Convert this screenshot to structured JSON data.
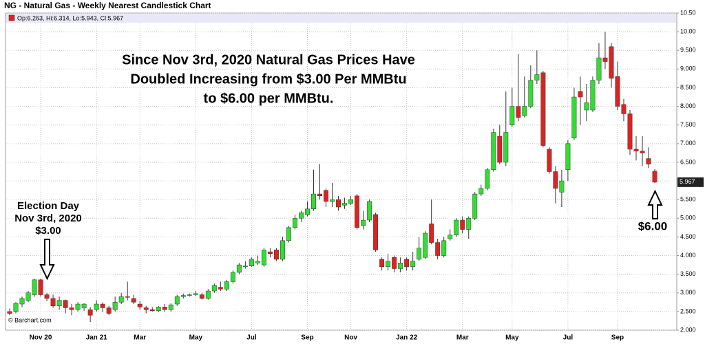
{
  "chart_data": {
    "type": "candlestick",
    "title": "NG - Natural Gas - Weekly Nearest Candlestick Chart",
    "legend_text": "Op:6.263, Hi:6.314, Lo:5.943, Cl:5.967",
    "annotation": [
      "Since Nov 3rd, 2020 Natural Gas Prices Have",
      "Doubled Increasing from $3.00 Per MMBtu",
      "to $6.00 per MMBtu."
    ],
    "election_label": [
      "Election Day",
      "Nov 3rd, 2020",
      "$3.00"
    ],
    "end_label": "$6.00",
    "credit": "© Barchart.com",
    "up_color": "#33dd33",
    "down_color": "#dd2222",
    "grid": true,
    "ylim": [
      2.0,
      10.5
    ],
    "yticks": [
      {
        "value": 2.0,
        "label": "2.000"
      },
      {
        "value": 2.5,
        "label": "2.500"
      },
      {
        "value": 3.0,
        "label": "3.000"
      },
      {
        "value": 3.5,
        "label": "3.500"
      },
      {
        "value": 4.0,
        "label": "4.000"
      },
      {
        "value": 4.5,
        "label": "4.500"
      },
      {
        "value": 5.0,
        "label": "5.000"
      },
      {
        "value": 5.5,
        "label": "5.500"
      },
      {
        "value": 6.0,
        "label": "6.000"
      },
      {
        "value": 6.5,
        "label": "6.500"
      },
      {
        "value": 7.0,
        "label": "7.000"
      },
      {
        "value": 7.5,
        "label": "7.500"
      },
      {
        "value": 8.0,
        "label": "8.000"
      },
      {
        "value": 8.5,
        "label": "8.500"
      },
      {
        "value": 9.0,
        "label": "9.000"
      },
      {
        "value": 9.5,
        "label": "9.500"
      },
      {
        "value": 10.0,
        "label": "10.00"
      },
      {
        "value": 10.5,
        "label": "10.50"
      }
    ],
    "categories": [
      null,
      null,
      null,
      null,
      null,
      "Nov 20",
      null,
      null,
      null,
      null,
      null,
      null,
      null,
      null,
      "Jan 21",
      null,
      null,
      null,
      null,
      null,
      null,
      "Mar",
      null,
      null,
      null,
      null,
      null,
      null,
      null,
      null,
      "May",
      null,
      null,
      null,
      null,
      null,
      null,
      null,
      null,
      "Jul",
      null,
      null,
      null,
      null,
      null,
      null,
      null,
      null,
      "Sep",
      null,
      null,
      null,
      null,
      null,
      null,
      "Nov",
      null,
      null,
      null,
      null,
      null,
      null,
      null,
      null,
      "Jan 22",
      null,
      null,
      null,
      null,
      null,
      null,
      null,
      null,
      "Mar",
      null,
      null,
      null,
      null,
      null,
      null,
      null,
      "May",
      null,
      null,
      null,
      null,
      null,
      null,
      null,
      null,
      "Jul",
      null,
      null,
      null,
      null,
      null,
      null,
      null,
      "Sep",
      null,
      null,
      null,
      null,
      null,
      null
    ],
    "open": [
      2.5,
      2.5,
      2.7,
      2.8,
      2.95,
      3.35,
      2.95,
      2.85,
      2.65,
      2.8,
      2.6,
      2.55,
      2.6,
      2.55,
      2.55,
      2.7,
      2.6,
      2.55,
      2.75,
      2.9,
      2.85,
      2.7,
      2.6,
      2.55,
      2.52,
      2.62,
      2.55,
      2.7,
      2.9,
      2.93,
      2.95,
      2.95,
      2.85,
      3.05,
      3.15,
      3.1,
      3.3,
      3.55,
      3.7,
      3.72,
      3.8,
      3.75,
      4.1,
      4.15,
      3.9,
      4.4,
      4.75,
      5.0,
      5.1,
      5.25,
      5.65,
      5.75,
      5.45,
      5.5,
      5.35,
      5.4,
      5.6,
      4.8,
      4.95,
      5.1,
      3.9,
      3.7,
      3.95,
      3.65,
      3.9,
      3.7,
      3.9,
      3.95,
      4.85,
      4.35,
      4.0,
      4.45,
      4.55,
      4.95,
      4.7,
      5.0,
      5.65,
      5.8,
      6.3,
      7.2,
      6.5,
      7.5,
      8.0,
      7.75,
      8.0,
      8.7,
      8.9,
      6.85,
      6.25,
      5.7,
      6.3,
      7.15,
      8.4,
      7.9,
      7.9,
      8.7,
      9.3,
      9.6,
      8.8,
      8.05,
      7.8,
      6.85,
      6.8,
      6.6,
      6.263
    ],
    "high": [
      2.58,
      2.75,
      2.9,
      3.05,
      3.38,
      3.38,
      3.0,
      2.95,
      2.9,
      2.82,
      2.7,
      2.75,
      2.72,
      2.62,
      2.8,
      2.75,
      2.65,
      2.9,
      3.0,
      3.3,
      2.95,
      2.78,
      2.65,
      2.62,
      2.65,
      2.7,
      2.72,
      2.95,
      2.98,
      2.98,
      3.05,
      3.0,
      3.1,
      3.25,
      3.3,
      3.35,
      3.6,
      3.8,
      3.85,
      3.95,
      4.0,
      4.2,
      4.2,
      4.2,
      4.5,
      4.8,
      5.1,
      5.2,
      5.45,
      6.3,
      6.45,
      5.8,
      5.95,
      5.6,
      5.55,
      5.6,
      5.65,
      5.2,
      5.5,
      5.15,
      3.95,
      4.05,
      4.0,
      3.95,
      3.95,
      4.1,
      4.5,
      4.65,
      5.5,
      4.45,
      4.5,
      4.7,
      5.0,
      5.05,
      5.05,
      5.7,
      5.9,
      6.35,
      7.4,
      7.5,
      8.4,
      8.5,
      9.4,
      8.8,
      9.1,
      9.5,
      8.95,
      6.9,
      6.4,
      6.3,
      7.1,
      8.5,
      8.8,
      8.6,
      8.8,
      9.7,
      10.0,
      9.7,
      9.2,
      8.2,
      7.9,
      7.2,
      7.2,
      6.9,
      6.314
    ],
    "low": [
      2.4,
      2.45,
      2.62,
      2.75,
      2.9,
      2.9,
      2.78,
      2.6,
      2.55,
      2.45,
      2.4,
      2.5,
      2.52,
      2.22,
      2.5,
      2.48,
      2.4,
      2.5,
      2.7,
      2.8,
      2.7,
      2.55,
      2.45,
      2.5,
      2.48,
      2.5,
      2.5,
      2.65,
      2.85,
      2.9,
      2.92,
      2.82,
      2.82,
      3.0,
      3.05,
      3.05,
      3.25,
      3.5,
      3.65,
      3.7,
      3.75,
      3.7,
      3.95,
      3.85,
      3.85,
      4.35,
      4.7,
      4.9,
      5.05,
      5.2,
      5.5,
      5.3,
      5.3,
      5.2,
      5.25,
      5.35,
      4.7,
      4.7,
      4.9,
      4.1,
      3.6,
      3.6,
      3.55,
      3.55,
      3.6,
      3.6,
      3.85,
      3.9,
      4.3,
      3.9,
      3.95,
      4.4,
      4.5,
      4.6,
      4.45,
      4.95,
      5.6,
      5.75,
      6.25,
      6.45,
      6.4,
      7.45,
      7.6,
      7.7,
      7.95,
      8.6,
      6.9,
      6.2,
      5.4,
      5.3,
      6.0,
      7.1,
      7.5,
      7.6,
      7.85,
      8.6,
      9.0,
      8.5,
      7.9,
      7.6,
      6.7,
      6.55,
      6.4,
      6.35,
      5.943
    ],
    "close": [
      2.45,
      2.72,
      2.85,
      3.0,
      3.35,
      2.95,
      2.85,
      2.65,
      2.8,
      2.6,
      2.55,
      2.7,
      2.7,
      2.4,
      2.7,
      2.6,
      2.45,
      2.75,
      2.9,
      2.88,
      2.75,
      2.62,
      2.55,
      2.52,
      2.62,
      2.55,
      2.68,
      2.9,
      2.93,
      2.95,
      2.98,
      2.85,
      3.05,
      3.2,
      3.1,
      3.3,
      3.55,
      3.75,
      3.72,
      3.9,
      3.85,
      4.15,
      4.05,
      3.9,
      4.4,
      4.75,
      5.0,
      5.15,
      5.25,
      5.65,
      5.6,
      5.45,
      5.5,
      5.3,
      5.4,
      5.5,
      4.75,
      4.95,
      5.45,
      4.15,
      3.7,
      3.85,
      3.65,
      3.8,
      3.7,
      3.85,
      4.2,
      4.6,
      4.35,
      4.0,
      4.4,
      4.55,
      4.95,
      4.7,
      5.0,
      5.65,
      5.8,
      6.3,
      7.3,
      6.5,
      7.3,
      8.0,
      7.7,
      8.0,
      8.7,
      8.85,
      6.95,
      6.25,
      5.8,
      6.0,
      7.0,
      8.25,
      8.25,
      8.1,
      8.7,
      9.3,
      9.2,
      8.75,
      8.0,
      7.8,
      6.85,
      6.8,
      6.75,
      6.45,
      5.967
    ]
  }
}
